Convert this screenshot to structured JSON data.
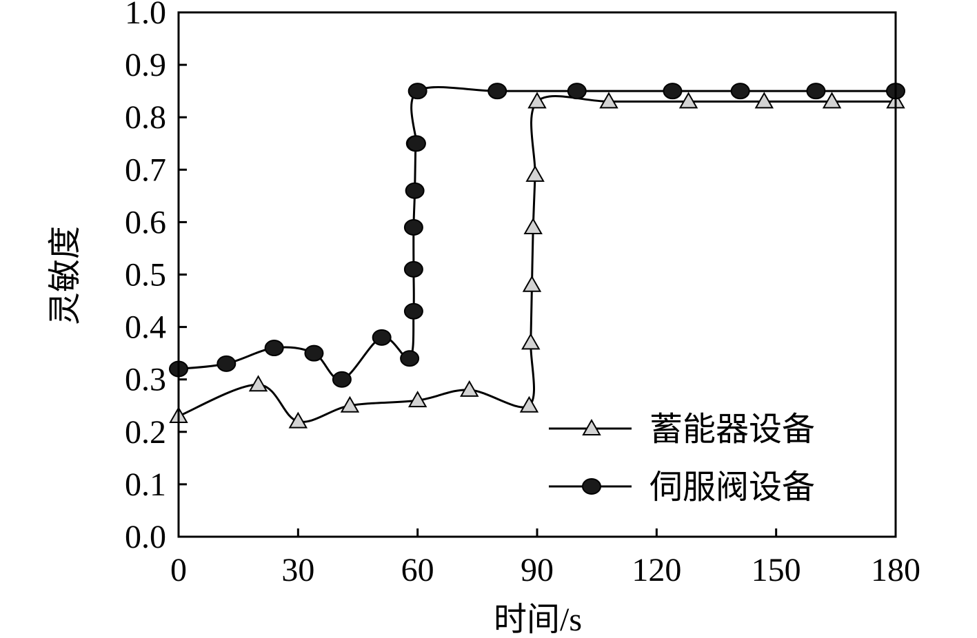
{
  "chart_data": {
    "type": "line",
    "xlabel": "时间/s",
    "ylabel": "灵敏度",
    "xlim": [
      0,
      180
    ],
    "ylim": [
      0.0,
      1.0
    ],
    "x_ticks": [
      0,
      30,
      60,
      90,
      120,
      150,
      180
    ],
    "x_tick_labels": [
      "0",
      "30",
      "60",
      "90",
      "120",
      "150",
      "180"
    ],
    "y_ticks": [
      0.0,
      0.1,
      0.2,
      0.3,
      0.4,
      0.5,
      0.6,
      0.7,
      0.8,
      0.9,
      1.0
    ],
    "y_tick_labels": [
      "0.0",
      "0.1",
      "0.2",
      "0.3",
      "0.4",
      "0.5",
      "0.6",
      "0.7",
      "0.8",
      "0.9",
      "1.0"
    ],
    "grid": false,
    "legend_position": "bottom-right",
    "series": [
      {
        "name": "蓄能器设备",
        "marker": "triangle",
        "color": "#000000",
        "marker_fill": "#d3d3d3",
        "x": [
          0,
          20,
          30,
          43,
          60,
          73,
          88,
          88.4,
          88.7,
          89,
          89.5,
          90,
          108,
          128,
          147,
          164,
          180
        ],
        "y": [
          0.23,
          0.29,
          0.22,
          0.25,
          0.26,
          0.28,
          0.25,
          0.37,
          0.48,
          0.59,
          0.69,
          0.83,
          0.83,
          0.83,
          0.83,
          0.83,
          0.83
        ]
      },
      {
        "name": "伺服阀设备",
        "marker": "circle",
        "color": "#000000",
        "marker_fill": "#1a1a1a",
        "x": [
          0,
          12,
          24,
          34,
          41,
          51,
          58,
          59,
          59,
          59,
          59.3,
          59.5,
          59.7,
          60,
          80,
          100,
          124,
          141,
          160,
          180
        ],
        "y": [
          0.32,
          0.33,
          0.36,
          0.35,
          0.3,
          0.38,
          0.34,
          0.43,
          0.51,
          0.59,
          0.66,
          0.75,
          0.75,
          0.85,
          0.85,
          0.85,
          0.85,
          0.85,
          0.85,
          0.85
        ]
      }
    ]
  }
}
